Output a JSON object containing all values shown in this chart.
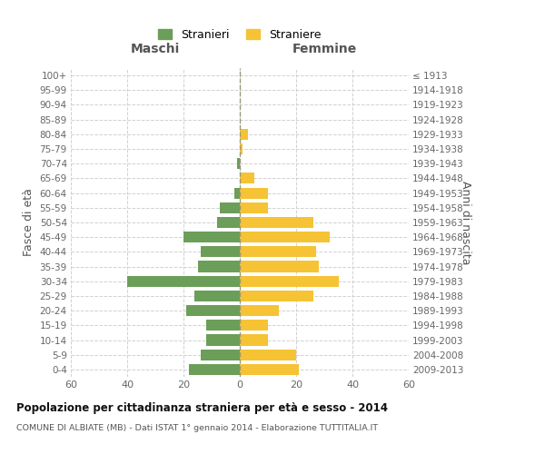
{
  "age_groups": [
    "0-4",
    "5-9",
    "10-14",
    "15-19",
    "20-24",
    "25-29",
    "30-34",
    "35-39",
    "40-44",
    "45-49",
    "50-54",
    "55-59",
    "60-64",
    "65-69",
    "70-74",
    "75-79",
    "80-84",
    "85-89",
    "90-94",
    "95-99",
    "100+"
  ],
  "birth_years": [
    "2009-2013",
    "2004-2008",
    "1999-2003",
    "1994-1998",
    "1989-1993",
    "1984-1988",
    "1979-1983",
    "1974-1978",
    "1969-1973",
    "1964-1968",
    "1959-1963",
    "1954-1958",
    "1949-1953",
    "1944-1948",
    "1939-1943",
    "1934-1938",
    "1929-1933",
    "1924-1928",
    "1919-1923",
    "1914-1918",
    "≤ 1913"
  ],
  "maschi": [
    18,
    14,
    12,
    12,
    19,
    16,
    40,
    15,
    14,
    20,
    8,
    7,
    2,
    0,
    1,
    0,
    0,
    0,
    0,
    0,
    0
  ],
  "femmine": [
    21,
    20,
    10,
    10,
    14,
    26,
    35,
    28,
    27,
    32,
    26,
    10,
    10,
    5,
    0,
    1,
    3,
    0,
    0,
    0,
    0
  ],
  "male_color": "#6b9e59",
  "female_color": "#f6c335",
  "title": "Popolazione per cittadinanza straniera per età e sesso - 2014",
  "subtitle": "COMUNE DI ALBIATE (MB) - Dati ISTAT 1° gennaio 2014 - Elaborazione TUTTITALIA.IT",
  "header_left": "Maschi",
  "header_right": "Femmine",
  "ylabel_left": "Fasce di età",
  "ylabel_right": "Anni di nascita",
  "xlim": 60,
  "legend_stranieri": "Stranieri",
  "legend_straniere": "Straniere",
  "background_color": "#ffffff",
  "grid_color": "#cccccc"
}
